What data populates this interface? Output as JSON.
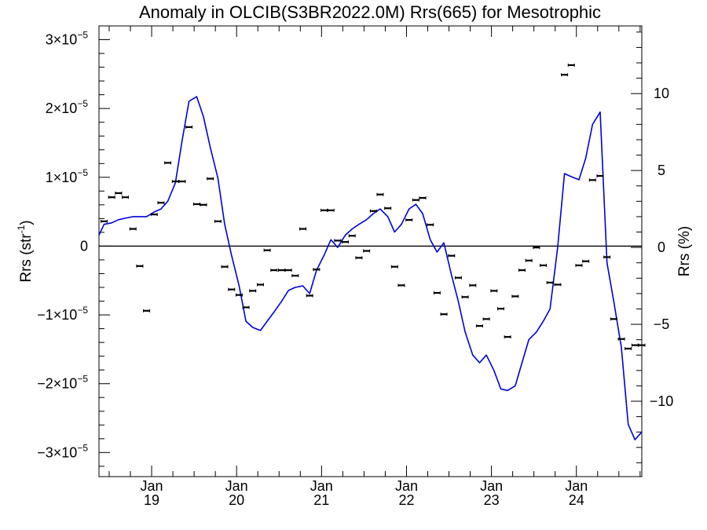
{
  "chart_data": {
    "type": "scatter",
    "title": "Anomaly in OLCIB(S3BR2022.0M) Rrs(665) for Mesotrophic",
    "ylabel_main": "Rrs (str",
    "ylabel_sup": "-1",
    "ylabel_end": ")",
    "y2label": "Rrs (%)",
    "ylim": [
      -3.35e-05,
      3.2e-05
    ],
    "y2lim": [
      -14.9,
      14.4
    ],
    "xlim": [
      2018.38,
      2024.77
    ],
    "yticks": [
      {
        "value": 3e-05,
        "mant": "3×10",
        "exp": "−5"
      },
      {
        "value": 2e-05,
        "mant": "2×10",
        "exp": "−5"
      },
      {
        "value": 1e-05,
        "mant": "1×10",
        "exp": "−5"
      },
      {
        "value": 0,
        "mant": "0",
        "exp": ""
      },
      {
        "value": -1e-05,
        "mant": "−1×10",
        "exp": "−5"
      },
      {
        "value": -2e-05,
        "mant": "−2×10",
        "exp": "−5"
      },
      {
        "value": -3e-05,
        "mant": "−3×10",
        "exp": "−5"
      }
    ],
    "y2ticks": [
      {
        "value": 10,
        "label": "10"
      },
      {
        "value": 5,
        "label": "5"
      },
      {
        "value": 0,
        "label": "0"
      },
      {
        "value": -5,
        "label": "−5"
      },
      {
        "value": -10,
        "label": "−10"
      }
    ],
    "xticks": [
      {
        "value": 2019.0,
        "month": "Jan",
        "year": "19"
      },
      {
        "value": 2020.0,
        "month": "Jan",
        "year": "20"
      },
      {
        "value": 2021.0,
        "month": "Jan",
        "year": "21"
      },
      {
        "value": 2022.0,
        "month": "Jan",
        "year": "22"
      },
      {
        "value": 2023.0,
        "month": "Jan",
        "year": "23"
      },
      {
        "value": 2024.0,
        "month": "Jan",
        "year": "24"
      }
    ],
    "zero_line": true,
    "points": [
      [
        2018.44,
        3.6e-06
      ],
      [
        2018.53,
        7.1e-06
      ],
      [
        2018.61,
        7.7e-06
      ],
      [
        2018.69,
        7.1e-06
      ],
      [
        2018.78,
        2.5e-06
      ],
      [
        2018.86,
        -2.9e-06
      ],
      [
        2018.94,
        -9.4e-06
      ],
      [
        2019.03,
        4.6e-06
      ],
      [
        2019.11,
        6.3e-06
      ],
      [
        2019.19,
        1.21e-05
      ],
      [
        2019.28,
        9.4e-06
      ],
      [
        2019.36,
        9.4e-06
      ],
      [
        2019.44,
        1.73e-05
      ],
      [
        2019.53,
        6.1e-06
      ],
      [
        2019.61,
        6e-06
      ],
      [
        2019.69,
        9.8e-06
      ],
      [
        2019.78,
        3.6e-06
      ],
      [
        2019.86,
        -3e-06
      ],
      [
        2019.94,
        -6.3e-06
      ],
      [
        2020.03,
        -7.1e-06
      ],
      [
        2020.11,
        -8.9e-06
      ],
      [
        2020.19,
        -6.5e-06
      ],
      [
        2020.28,
        -5.6e-06
      ],
      [
        2020.36,
        -6e-07
      ],
      [
        2020.44,
        -3.5e-06
      ],
      [
        2020.53,
        -3.5e-06
      ],
      [
        2020.61,
        -3.5e-06
      ],
      [
        2020.69,
        -4.3e-06
      ],
      [
        2020.78,
        2.5e-06
      ],
      [
        2020.86,
        -7.2e-06
      ],
      [
        2020.94,
        -3.4e-06
      ],
      [
        2021.03,
        5.2e-06
      ],
      [
        2021.11,
        5.2e-06
      ],
      [
        2021.19,
        8e-07
      ],
      [
        2021.28,
        6e-07
      ],
      [
        2021.36,
        1.5e-06
      ],
      [
        2021.44,
        -1.7e-06
      ],
      [
        2021.53,
        -7e-07
      ],
      [
        2021.61,
        5.1e-06
      ],
      [
        2021.69,
        7.5e-06
      ],
      [
        2021.78,
        5.5e-06
      ],
      [
        2021.86,
        -3e-06
      ],
      [
        2021.94,
        -5.7e-06
      ],
      [
        2022.03,
        3.8e-06
      ],
      [
        2022.11,
        6.7e-06
      ],
      [
        2022.19,
        7e-06
      ],
      [
        2022.28,
        3.1e-06
      ],
      [
        2022.36,
        -6.8e-06
      ],
      [
        2022.44,
        -9.9e-06
      ],
      [
        2022.53,
        -1.4e-06
      ],
      [
        2022.61,
        -4.6e-06
      ],
      [
        2022.69,
        -7.4e-06
      ],
      [
        2022.78,
        -5.7e-06
      ],
      [
        2022.86,
        -1.16e-05
      ],
      [
        2022.94,
        -1.06e-05
      ],
      [
        2023.03,
        -6.5e-06
      ],
      [
        2023.11,
        -9.1e-06
      ],
      [
        2023.19,
        -1.32e-05
      ],
      [
        2023.28,
        -7.3e-06
      ],
      [
        2023.36,
        -3.5e-06
      ],
      [
        2023.44,
        -2.1e-06
      ],
      [
        2023.53,
        -2e-07
      ],
      [
        2023.61,
        -2.8e-06
      ],
      [
        2023.69,
        -5.3e-06
      ],
      [
        2023.78,
        -5.6e-06
      ],
      [
        2023.86,
        2.49e-05
      ],
      [
        2023.94,
        2.63e-05
      ],
      [
        2024.03,
        -2.8e-06
      ],
      [
        2024.11,
        -2.2e-06
      ],
      [
        2024.19,
        9.6e-06
      ],
      [
        2024.28,
        1.02e-05
      ],
      [
        2024.36,
        -1.6e-06
      ],
      [
        2024.44,
        -1.06e-05
      ],
      [
        2024.53,
        -1.35e-05
      ],
      [
        2024.61,
        -1.49e-05
      ],
      [
        2024.69,
        -1.44e-05
      ],
      [
        2024.77,
        -1.44e-05
      ]
    ],
    "series": [
      {
        "color": "#0000dd",
        "x": [
          2018.38,
          2018.44,
          2018.53,
          2018.61,
          2018.69,
          2018.78,
          2018.86,
          2018.94,
          2019.03,
          2019.11,
          2019.19,
          2019.28,
          2019.36,
          2019.44,
          2019.53,
          2019.61,
          2019.69,
          2019.78,
          2019.86,
          2019.94,
          2020.03,
          2020.11,
          2020.19,
          2020.28,
          2020.36,
          2020.44,
          2020.53,
          2020.61,
          2020.69,
          2020.78,
          2020.86,
          2020.94,
          2021.03,
          2021.11,
          2021.19,
          2021.28,
          2021.36,
          2021.44,
          2021.53,
          2021.61,
          2021.69,
          2021.78,
          2021.86,
          2021.94,
          2022.03,
          2022.11,
          2022.19,
          2022.28,
          2022.36,
          2022.44,
          2022.53,
          2022.61,
          2022.69,
          2022.78,
          2022.86,
          2022.94,
          2023.03,
          2023.11,
          2023.19,
          2023.28,
          2023.36,
          2023.44,
          2023.53,
          2023.61,
          2023.69,
          2023.78,
          2023.86,
          2023.94,
          2024.03,
          2024.11,
          2024.19,
          2024.28,
          2024.36,
          2024.44,
          2024.53,
          2024.61,
          2024.69,
          2024.77
        ],
        "y": [
          0.8,
          1.5,
          1.6,
          1.8,
          1.9,
          2.0,
          2.0,
          2.0,
          2.3,
          2.5,
          3.0,
          4.2,
          7.0,
          9.5,
          9.8,
          8.5,
          6.5,
          4.5,
          1.5,
          -0.5,
          -2.5,
          -4.8,
          -5.2,
          -5.4,
          -4.8,
          -4.2,
          -3.5,
          -2.8,
          -2.6,
          -2.5,
          -3.0,
          -1.5,
          -0.5,
          0.5,
          0.0,
          0.8,
          1.2,
          1.5,
          1.8,
          2.2,
          2.5,
          2.0,
          1.0,
          1.5,
          2.5,
          2.8,
          2.2,
          0.5,
          -0.3,
          0.3,
          -1.8,
          -3.5,
          -5.5,
          -7.0,
          -7.5,
          -7.0,
          -8.0,
          -9.2,
          -9.3,
          -9.0,
          -7.5,
          -6.0,
          -5.5,
          -4.8,
          -4.0,
          0.0,
          4.8,
          4.6,
          4.4,
          5.8,
          8.0,
          8.8,
          -1.0,
          -3.5,
          -6.5,
          -11.5,
          -12.5,
          -12.0
        ]
      }
    ]
  }
}
